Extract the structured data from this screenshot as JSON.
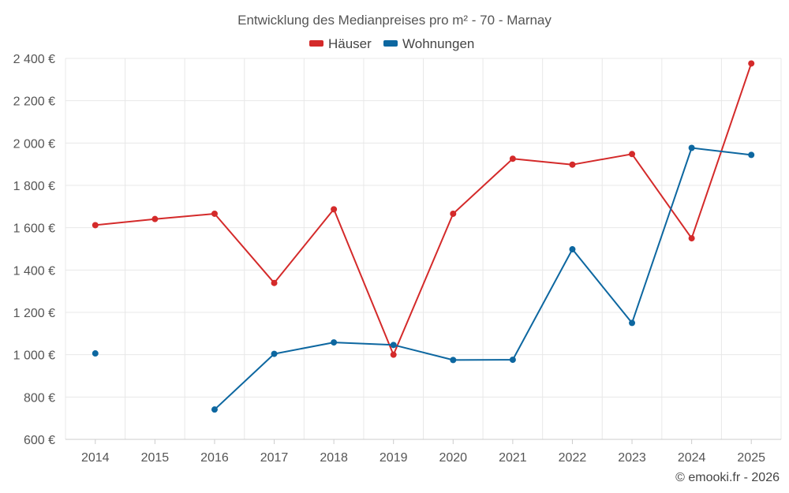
{
  "chart_data": {
    "type": "line",
    "title": "Entwicklung des Medianpreises pro m² - 70 - Marnay",
    "categories": [
      "2014",
      "2015",
      "2016",
      "2017",
      "2018",
      "2019",
      "2020",
      "2021",
      "2022",
      "2023",
      "2024",
      "2025"
    ],
    "series": [
      {
        "name": "Häuser",
        "color": "#d42a2a",
        "values": [
          1612,
          1641,
          1666,
          1339,
          1687,
          1000,
          1666,
          1926,
          1898,
          1948,
          1550,
          2376
        ]
      },
      {
        "name": "Wohnungen",
        "color": "#0d67a0",
        "values": [
          1006,
          null,
          741,
          1004,
          1058,
          1046,
          975,
          976,
          1498,
          1150,
          1977,
          1944
        ]
      }
    ],
    "ylim": [
      600,
      2400
    ],
    "yticks": [
      600,
      800,
      1000,
      1200,
      1400,
      1600,
      1800,
      2000,
      2200,
      2400
    ],
    "ytick_labels": [
      "600 €",
      "800 €",
      "1 000 €",
      "1 200 €",
      "1 400 €",
      "1 600 €",
      "1 800 €",
      "2 000 €",
      "2 200 €",
      "2 400 €"
    ],
    "xlabel": "",
    "ylabel": "",
    "grid": true,
    "legend_position": "top-center"
  },
  "credit": "© emooki.fr - 2026"
}
